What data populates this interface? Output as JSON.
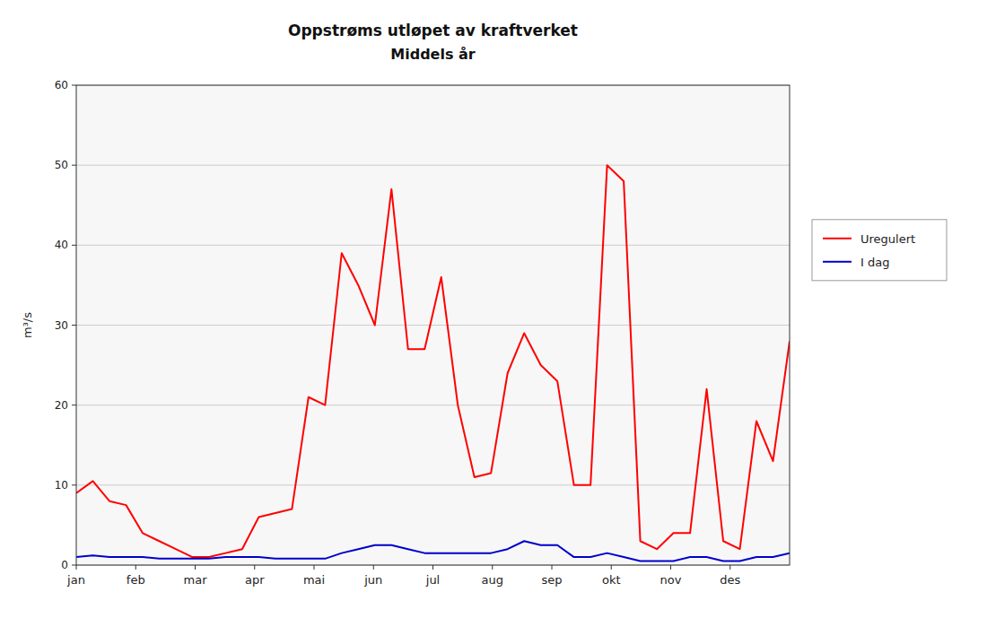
{
  "chart_data": {
    "type": "line",
    "title": "Oppstrøms utløpet av kraftverket",
    "subtitle": "Middels år",
    "y_label": "m³/s",
    "xlim": [
      0,
      12
    ],
    "xticks": [
      {
        "value": 0,
        "label": "jan"
      },
      {
        "value": 1,
        "label": "feb"
      },
      {
        "value": 2,
        "label": "mar"
      },
      {
        "value": 3,
        "label": "apr"
      },
      {
        "value": 4,
        "label": "mai"
      },
      {
        "value": 5,
        "label": "jun"
      },
      {
        "value": 6,
        "label": "jul"
      },
      {
        "value": 7,
        "label": "aug"
      },
      {
        "value": 8,
        "label": "sep"
      },
      {
        "value": 9,
        "label": "okt"
      },
      {
        "value": 10,
        "label": "nov"
      },
      {
        "value": 11,
        "label": "des"
      }
    ],
    "ylim": [
      0,
      60
    ],
    "yticks": [
      0,
      10,
      20,
      30,
      40,
      50,
      60
    ],
    "grid": "y",
    "legend": "right",
    "series": [
      {
        "name": "Uregulert",
        "color": "#ff0000",
        "values": [
          9.0,
          10.5,
          8.0,
          7.5,
          4.0,
          3.0,
          2.0,
          1.0,
          1.0,
          1.5,
          2.0,
          6.0,
          6.5,
          7.0,
          21.0,
          20.0,
          39.0,
          35.0,
          30.0,
          47.0,
          27.0,
          27.0,
          36.0,
          20.0,
          11.0,
          11.5,
          24.0,
          29.0,
          25.0,
          23.0,
          10.0,
          10.0,
          50.0,
          48.0,
          3.0,
          2.0,
          4.0,
          4.0,
          22.0,
          3.0,
          2.0,
          18.0,
          13.0,
          28.0
        ]
      },
      {
        "name": "I dag",
        "color": "#0000cc",
        "values": [
          1.0,
          1.2,
          1.0,
          1.0,
          1.0,
          0.8,
          0.8,
          0.8,
          0.8,
          1.0,
          1.0,
          1.0,
          0.8,
          0.8,
          0.8,
          0.8,
          1.5,
          2.0,
          2.5,
          2.5,
          2.0,
          1.5,
          1.5,
          1.5,
          1.5,
          1.5,
          2.0,
          3.0,
          2.5,
          2.5,
          1.0,
          1.0,
          1.5,
          1.0,
          0.5,
          0.5,
          0.5,
          1.0,
          1.0,
          0.5,
          0.5,
          1.0,
          1.0,
          1.5
        ]
      }
    ]
  }
}
